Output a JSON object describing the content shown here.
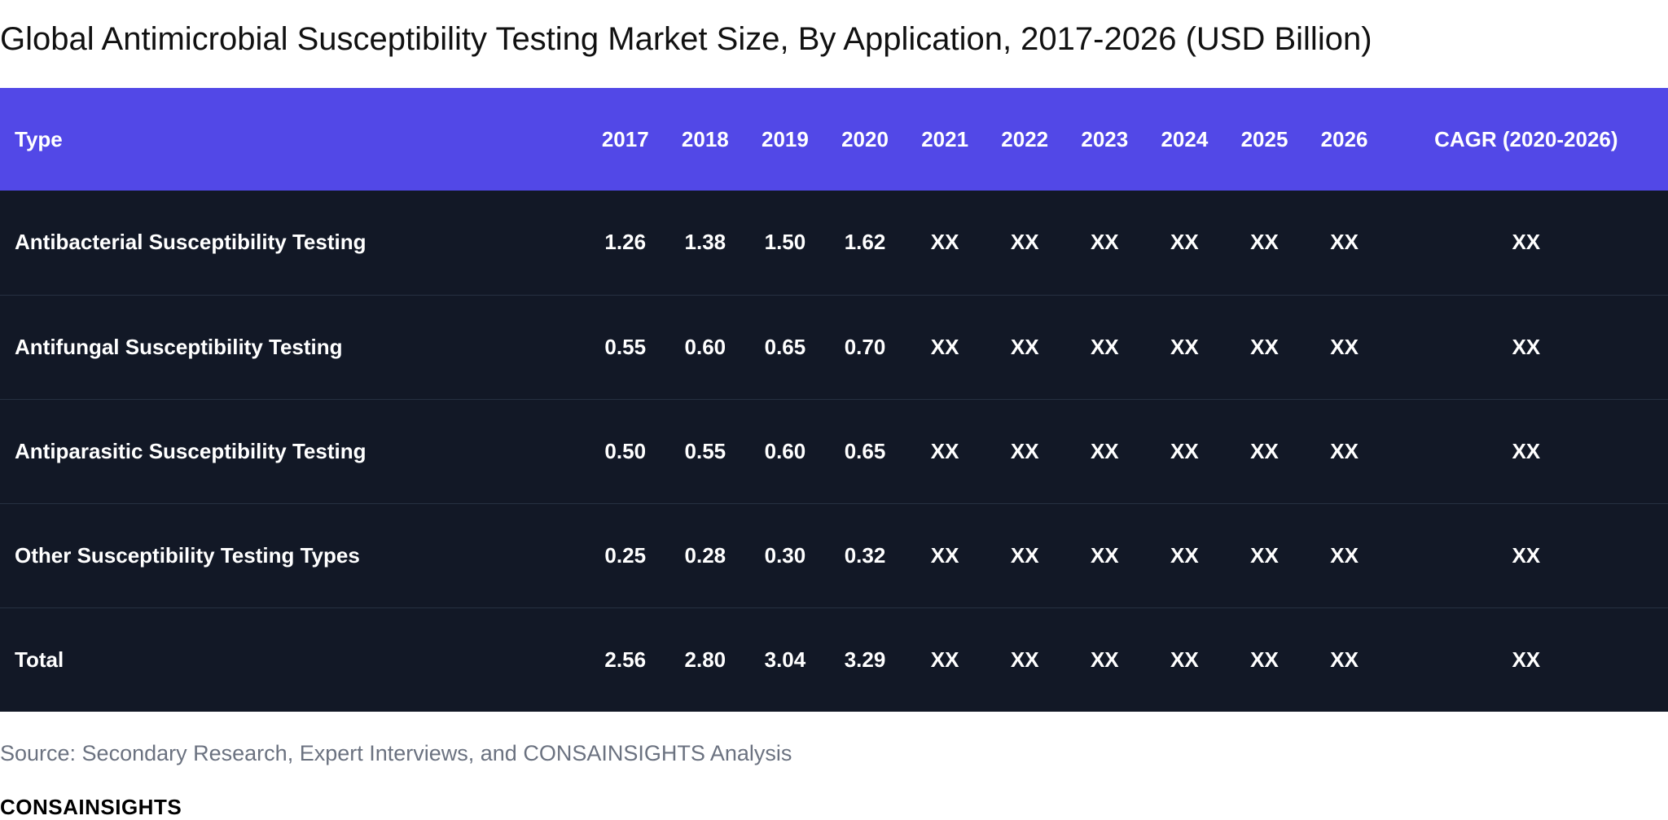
{
  "title": "Global Antimicrobial Susceptibility Testing Market Size, By Application, 2017-2026 (USD Billion)",
  "chart_data": {
    "type": "table",
    "title": "Global Antimicrobial Susceptibility Testing Market Size, By Application, 2017-2026 (USD Billion)",
    "columns": [
      "Type",
      "2017",
      "2018",
      "2019",
      "2020",
      "2021",
      "2022",
      "2023",
      "2024",
      "2025",
      "2026",
      "CAGR (2020-2026)"
    ],
    "rows": [
      [
        "Antibacterial Susceptibility Testing",
        "1.26",
        "1.38",
        "1.50",
        "1.62",
        "XX",
        "XX",
        "XX",
        "XX",
        "XX",
        "XX",
        "XX"
      ],
      [
        "Antifungal Susceptibility Testing",
        "0.55",
        "0.60",
        "0.65",
        "0.70",
        "XX",
        "XX",
        "XX",
        "XX",
        "XX",
        "XX",
        "XX"
      ],
      [
        "Antiparasitic Susceptibility Testing",
        "0.50",
        "0.55",
        "0.60",
        "0.65",
        "XX",
        "XX",
        "XX",
        "XX",
        "XX",
        "XX",
        "XX"
      ],
      [
        "Other Susceptibility Testing Types",
        "0.25",
        "0.28",
        "0.30",
        "0.32",
        "XX",
        "XX",
        "XX",
        "XX",
        "XX",
        "XX",
        "XX"
      ],
      [
        "Total",
        "2.56",
        "2.80",
        "3.04",
        "3.29",
        "XX",
        "XX",
        "XX",
        "XX",
        "XX",
        "XX",
        "XX"
      ]
    ]
  },
  "source": "Source: Secondary Research, Expert Interviews, and CONSAINSIGHTS Analysis",
  "logo": "CONSAINSIGHTS",
  "colors": {
    "header_bg": "#5248e7",
    "body_bg": "#121826",
    "row_border": "#263041",
    "source_text": "#6b7280"
  }
}
